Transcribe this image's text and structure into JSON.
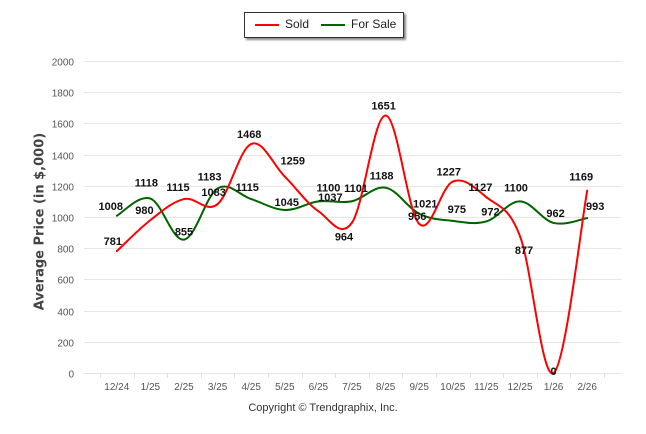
{
  "chart_data": {
    "type": "line",
    "title": "",
    "xlabel": "",
    "ylabel": "Average Price (in $,000)",
    "ylim": [
      0,
      2000
    ],
    "yticks": [
      "0",
      "200",
      "400",
      "600",
      "800",
      "1000",
      "1200",
      "1400",
      "1600",
      "1800",
      "2000"
    ],
    "ytick_values": [
      0,
      200,
      400,
      600,
      800,
      1000,
      1200,
      1400,
      1600,
      1800,
      2000
    ],
    "grid": true,
    "legend_position": "top-center",
    "categories": [
      "12/24",
      "1/25",
      "2/25",
      "3/25",
      "4/25",
      "5/25",
      "6/25",
      "7/25",
      "8/25",
      "9/25",
      "10/25",
      "11/25",
      "12/25",
      "1/26",
      "2/26"
    ],
    "series": [
      {
        "name": "Sold",
        "color": "#ff0000",
        "values": [
          781,
          980,
          1115,
          1083,
          1468,
          1259,
          1037,
          964,
          1651,
          956,
          1227,
          1127,
          877,
          0,
          1169
        ]
      },
      {
        "name": "For Sale",
        "color": "#006400",
        "values": [
          1008,
          1118,
          855,
          1183,
          1115,
          1045,
          1100,
          1101,
          1188,
          1021,
          975,
          972,
          1100,
          962,
          993
        ]
      }
    ]
  },
  "legend": {
    "items": [
      {
        "label": "Sold",
        "color": "#ff0000"
      },
      {
        "label": "For Sale",
        "color": "#006400"
      }
    ]
  },
  "footer": {
    "copyright": "Copyright © Trendgraphix, Inc."
  }
}
